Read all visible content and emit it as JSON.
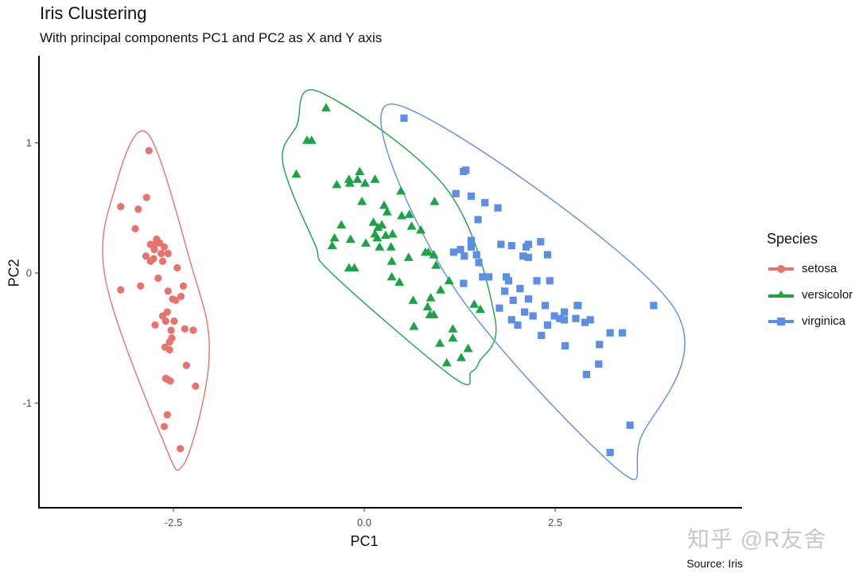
{
  "title": "Iris Clustering",
  "subtitle": "With principal components PC1 and PC2 as X and Y axis",
  "caption": "Source: Iris",
  "watermark": "知乎 @R友舍",
  "legend": {
    "title": "Species",
    "items": [
      {
        "label": "setosa",
        "color": "#E8736C",
        "shape": "circle"
      },
      {
        "label": "versicolor",
        "color": "#1AA443",
        "shape": "triangle"
      },
      {
        "label": "virginica",
        "color": "#5B8FE6",
        "shape": "square"
      }
    ]
  },
  "chart_data": {
    "type": "scatter",
    "title": "Iris Clustering",
    "subtitle": "With principal components PC1 and PC2 as X and Y axis",
    "xlabel": "PC1",
    "ylabel": "PC2",
    "caption": "Source: Iris",
    "xlim": [
      -4.3,
      4.9
    ],
    "ylim": [
      -1.8,
      1.65
    ],
    "x_ticks": [
      -2.5,
      0.0,
      2.5
    ],
    "x_tick_labels": [
      "-2.5",
      "0.0",
      "2.5"
    ],
    "y_ticks": [
      -1,
      0,
      1
    ],
    "y_tick_labels": [
      "-1",
      "0",
      "1"
    ],
    "grid": false,
    "legend_position": "right",
    "legend_title": "Species",
    "hulls": "convex ellipse-like outlines per species",
    "series": [
      {
        "name": "setosa",
        "color": "#E8736C",
        "shape": "circle",
        "points": [
          [
            -2.82,
            0.94
          ],
          [
            -2.85,
            0.58
          ],
          [
            -3.19,
            0.51
          ],
          [
            -2.96,
            0.49
          ],
          [
            -3.0,
            0.34
          ],
          [
            -2.72,
            0.26
          ],
          [
            -2.8,
            0.22
          ],
          [
            -2.74,
            0.22
          ],
          [
            -2.68,
            0.23
          ],
          [
            -2.62,
            0.2
          ],
          [
            -2.75,
            0.18
          ],
          [
            -2.66,
            0.15
          ],
          [
            -2.57,
            0.15
          ],
          [
            -2.86,
            0.13
          ],
          [
            -2.76,
            0.11
          ],
          [
            -2.64,
            0.09
          ],
          [
            -2.8,
            0.09
          ],
          [
            -2.45,
            0.04
          ],
          [
            -3.19,
            -0.13
          ],
          [
            -2.7,
            -0.04
          ],
          [
            -2.93,
            -0.1
          ],
          [
            -2.57,
            -0.14
          ],
          [
            -2.37,
            -0.1
          ],
          [
            -2.51,
            -0.2
          ],
          [
            -2.47,
            -0.21
          ],
          [
            -2.4,
            -0.18
          ],
          [
            -2.58,
            -0.3
          ],
          [
            -2.64,
            -0.33
          ],
          [
            -2.6,
            -0.37
          ],
          [
            -2.49,
            -0.37
          ],
          [
            -2.74,
            -0.4
          ],
          [
            -2.53,
            -0.44
          ],
          [
            -2.35,
            -0.43
          ],
          [
            -2.24,
            -0.44
          ],
          [
            -2.52,
            -0.5
          ],
          [
            -2.55,
            -0.53
          ],
          [
            -2.61,
            -0.57
          ],
          [
            -2.55,
            -0.59
          ],
          [
            -2.33,
            -0.71
          ],
          [
            -2.6,
            -0.81
          ],
          [
            -2.57,
            -0.82
          ],
          [
            -2.54,
            -0.83
          ],
          [
            -2.21,
            -0.87
          ],
          [
            -2.58,
            -1.09
          ],
          [
            -2.62,
            -1.18
          ],
          [
            -2.41,
            -1.35
          ]
        ]
      },
      {
        "name": "versicolor",
        "color": "#1AA443",
        "shape": "triangle",
        "points": [
          [
            -0.5,
            1.27
          ],
          [
            -0.75,
            1.02
          ],
          [
            -0.69,
            1.02
          ],
          [
            -0.89,
            0.76
          ],
          [
            -0.06,
            0.78
          ],
          [
            -0.2,
            0.72
          ],
          [
            -0.09,
            0.72
          ],
          [
            0.14,
            0.72
          ],
          [
            -0.19,
            0.69
          ],
          [
            0.01,
            0.69
          ],
          [
            -0.36,
            0.68
          ],
          [
            0.48,
            0.63
          ],
          [
            0.92,
            0.55
          ],
          [
            -0.03,
            0.55
          ],
          [
            0.26,
            0.52
          ],
          [
            0.3,
            0.47
          ],
          [
            0.59,
            0.45
          ],
          [
            0.49,
            0.44
          ],
          [
            -0.3,
            0.37
          ],
          [
            0.12,
            0.39
          ],
          [
            0.23,
            0.37
          ],
          [
            0.18,
            0.35
          ],
          [
            0.62,
            0.36
          ],
          [
            0.28,
            0.29
          ],
          [
            0.17,
            0.27
          ],
          [
            0.37,
            0.3
          ],
          [
            0.74,
            0.33
          ],
          [
            0.14,
            0.3
          ],
          [
            0.35,
            0.2
          ],
          [
            0.2,
            0.2
          ],
          [
            -0.18,
            0.26
          ],
          [
            -0.39,
            0.27
          ],
          [
            -0.2,
            0.04
          ],
          [
            -0.42,
            0.21
          ],
          [
            0.36,
            0.09
          ],
          [
            0.58,
            0.12
          ],
          [
            0.84,
            0.16
          ],
          [
            0.91,
            0.14
          ],
          [
            0.02,
            0.23
          ],
          [
            -0.13,
            0.04
          ],
          [
            0.36,
            -0.03
          ],
          [
            0.46,
            -0.07
          ],
          [
            0.64,
            -0.21
          ],
          [
            0.83,
            -0.26
          ],
          [
            0.91,
            -0.32
          ],
          [
            0.86,
            -0.32
          ],
          [
            0.65,
            -0.41
          ],
          [
            0.99,
            -0.54
          ],
          [
            1.16,
            -0.43
          ],
          [
            1.36,
            -0.58
          ],
          [
            1.08,
            -0.69
          ],
          [
            1.27,
            -0.65
          ],
          [
            1.52,
            -0.28
          ],
          [
            1.44,
            -0.24
          ],
          [
            1.11,
            -0.06
          ],
          [
            1.0,
            -0.13
          ],
          [
            0.8,
            0.16
          ],
          [
            1.16,
            -0.5
          ],
          [
            0.94,
            0.06
          ],
          [
            0.87,
            -0.19
          ]
        ]
      },
      {
        "name": "virginica",
        "color": "#5B8FE6",
        "shape": "square",
        "points": [
          [
            0.52,
            1.19
          ],
          [
            1.3,
            0.78
          ],
          [
            1.33,
            0.79
          ],
          [
            1.2,
            0.61
          ],
          [
            1.4,
            0.59
          ],
          [
            1.58,
            0.54
          ],
          [
            1.75,
            0.5
          ],
          [
            1.49,
            0.41
          ],
          [
            1.4,
            0.25
          ],
          [
            1.17,
            0.16
          ],
          [
            1.26,
            0.18
          ],
          [
            1.4,
            0.2
          ],
          [
            1.47,
            0.14
          ],
          [
            1.31,
            0.13
          ],
          [
            1.79,
            0.22
          ],
          [
            1.93,
            0.21
          ],
          [
            2.12,
            0.2
          ],
          [
            2.15,
            0.22
          ],
          [
            2.31,
            0.24
          ],
          [
            2.08,
            0.13
          ],
          [
            2.15,
            0.12
          ],
          [
            2.4,
            0.14
          ],
          [
            1.3,
            -0.08
          ],
          [
            1.5,
            0.08
          ],
          [
            1.63,
            -0.03
          ],
          [
            1.86,
            -0.03
          ],
          [
            1.89,
            -0.06
          ],
          [
            1.84,
            -0.14
          ],
          [
            2.04,
            -0.12
          ],
          [
            2.26,
            -0.06
          ],
          [
            2.43,
            -0.06
          ],
          [
            1.77,
            -0.27
          ],
          [
            1.95,
            -0.21
          ],
          [
            2.15,
            -0.2
          ],
          [
            2.37,
            -0.25
          ],
          [
            2.49,
            -0.33
          ],
          [
            2.4,
            -0.4
          ],
          [
            2.56,
            -0.35
          ],
          [
            2.77,
            -0.35
          ],
          [
            2.79,
            -0.25
          ],
          [
            2.8,
            -0.25
          ],
          [
            2.62,
            -0.36
          ],
          [
            2.89,
            -0.38
          ],
          [
            2.96,
            -0.36
          ],
          [
            3.08,
            -0.55
          ],
          [
            3.22,
            -0.46
          ],
          [
            3.38,
            -0.46
          ],
          [
            3.79,
            -0.25
          ],
          [
            2.63,
            -0.56
          ],
          [
            2.91,
            -0.78
          ],
          [
            3.07,
            -0.7
          ],
          [
            2.32,
            -0.48
          ],
          [
            3.48,
            -1.17
          ],
          [
            3.22,
            -1.38
          ],
          [
            2.01,
            -0.4
          ],
          [
            2.21,
            -0.33
          ],
          [
            2.62,
            -0.3
          ],
          [
            1.93,
            -0.36
          ],
          [
            2.1,
            -0.3
          ],
          [
            1.55,
            -0.03
          ]
        ]
      }
    ]
  },
  "axes": {
    "x_ticks": [
      "-2.5",
      "0.0",
      "2.5"
    ],
    "y_ticks": [
      "1",
      "0",
      "-1"
    ],
    "xlabel": "PC1",
    "ylabel": "PC2"
  }
}
